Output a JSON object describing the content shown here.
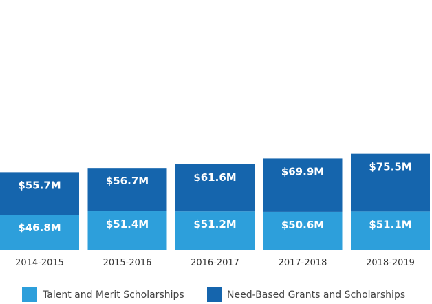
{
  "chart_data": {
    "type": "bar",
    "stacked": true,
    "categories": [
      "2014-2015",
      "2015-2016",
      "2016-2017",
      "2017-2018",
      "2018-2019"
    ],
    "series": [
      {
        "name": "Talent and Merit Scholarships",
        "values": [
          46.8,
          51.4,
          51.2,
          50.6,
          51.1
        ],
        "labels": [
          "$46.8M",
          "$51.4M",
          "$51.2M",
          "$50.6M",
          "$51.1M"
        ],
        "color": "#2d9fdb"
      },
      {
        "name": "Need-Based Grants and Scholarships",
        "values": [
          55.7,
          56.7,
          61.6,
          69.9,
          75.5
        ],
        "labels": [
          "$55.7M",
          "$56.7M",
          "$61.6M",
          "$69.9M",
          "$75.5M"
        ],
        "color": "#1565ad"
      }
    ],
    "title": "",
    "xlabel": "",
    "ylabel": "",
    "grid": false,
    "legend_position": "bottom"
  }
}
